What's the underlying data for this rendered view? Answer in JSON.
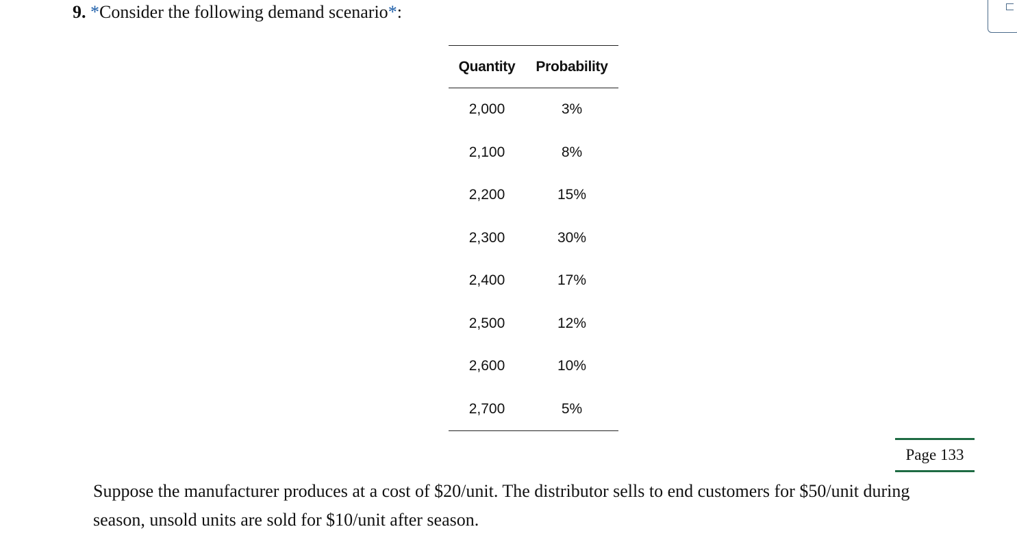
{
  "question": {
    "number": "9.",
    "prefix_asterisk": "*",
    "text": "Consider the following demand scenario",
    "suffix_asterisk": "*",
    "suffix": ":"
  },
  "table": {
    "headers": [
      "Quantity",
      "Probability"
    ],
    "rows": [
      [
        "2,000",
        "3%"
      ],
      [
        "2,100",
        "8%"
      ],
      [
        "2,200",
        "15%"
      ],
      [
        "2,300",
        "30%"
      ],
      [
        "2,400",
        "17%"
      ],
      [
        "2,500",
        "12%"
      ],
      [
        "2,600",
        "10%"
      ],
      [
        "2,700",
        "5%"
      ]
    ]
  },
  "page_marker": "Page 133",
  "paragraph": "Suppose the manufacturer produces at a cost of $20/unit. The distributor sells to end customers for $50/unit during season, unsold units are sold for $10/unit after season.",
  "side_widget": {
    "icon": "corner-bracket-icon",
    "border_color": "#4a6a8a"
  },
  "colors": {
    "asterisk": "#1a5ca8",
    "page_marker_rule": "#1e6b43"
  }
}
